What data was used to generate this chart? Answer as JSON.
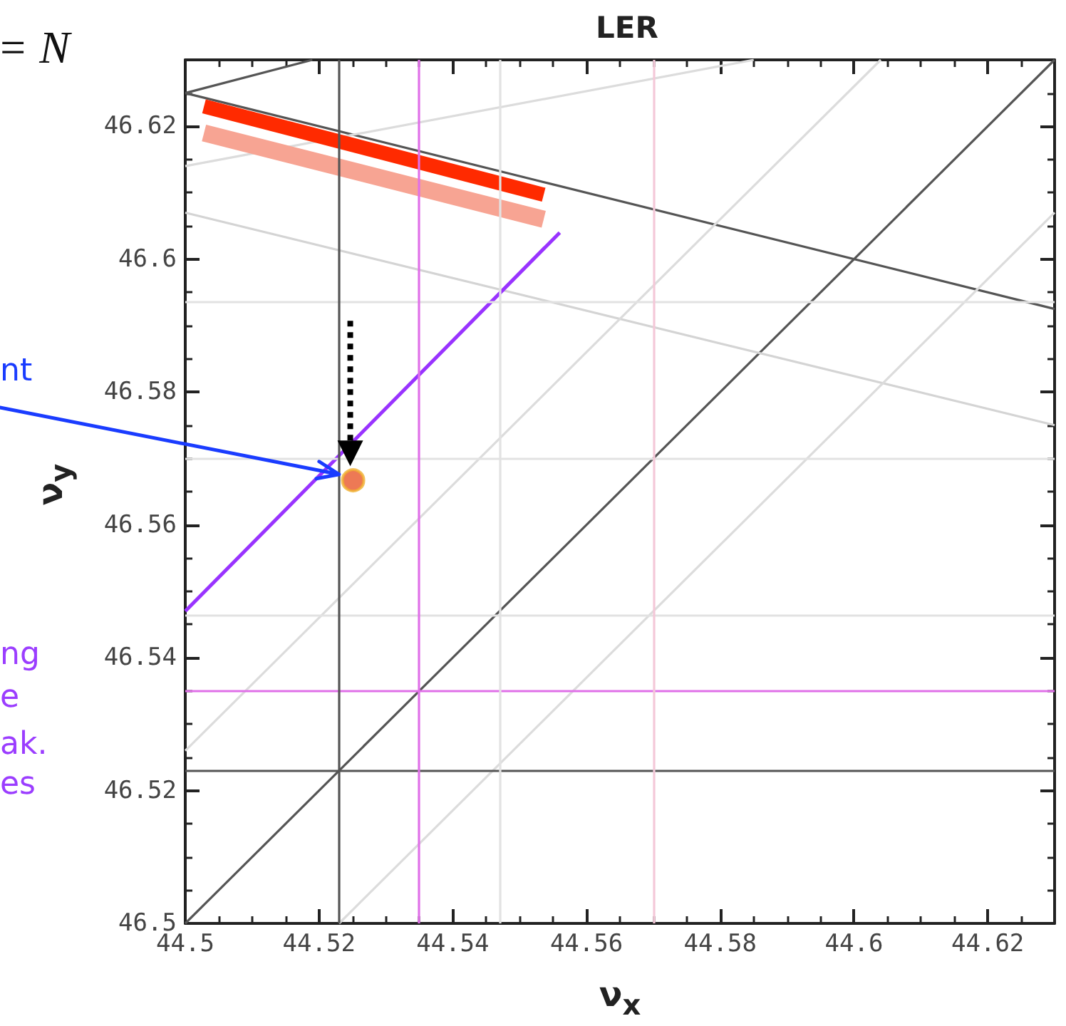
{
  "chart_data": {
    "type": "line",
    "title": "LER",
    "xlabel": "ν$_{x}$",
    "ylabel": "ν$_{y}$",
    "xlim": [
      44.5,
      44.63
    ],
    "ylim": [
      46.5,
      46.63
    ],
    "xticks": [
      44.5,
      44.52,
      44.54,
      44.56,
      44.58,
      44.6,
      44.62
    ],
    "yticks": [
      46.5,
      46.52,
      46.54,
      46.56,
      46.58,
      46.6,
      46.62
    ],
    "grid": false,
    "marker": "none",
    "line_style": "solid",
    "series": [
      {
        "color": "#555555",
        "x": [
          44.5,
          44.63
        ],
        "values": [
          46.5,
          46.63
        ]
      },
      {
        "color": "#555555",
        "x": [
          44.5,
          44.63
        ],
        "values": [
          46.625,
          46.5925
        ]
      },
      {
        "color": "#555555",
        "x": [
          44.5,
          44.519
        ],
        "values": [
          46.625,
          46.63
        ]
      },
      {
        "color": "#d4d4d4",
        "x": [
          44.5,
          44.63
        ],
        "values": [
          46.607,
          46.575
        ]
      },
      {
        "color": "#dcdcdc",
        "x": [
          44.5,
          44.585
        ],
        "values": [
          46.614,
          46.63
        ]
      },
      {
        "color": "#dcdcdc",
        "x": [
          44.5,
          44.604
        ],
        "values": [
          46.526,
          46.63
        ]
      },
      {
        "color": "#dcdcdc",
        "x": [
          44.523,
          44.63
        ],
        "values": [
          46.5,
          46.607
        ]
      },
      {
        "color": "#f7a493",
        "x": [
          44.5028,
          44.5536
        ],
        "values": [
          46.619,
          46.606
        ]
      },
      {
        "color": "#ff2a00",
        "x": [
          44.5028,
          44.5536
        ],
        "values": [
          46.623,
          46.6097
        ]
      },
      {
        "color": "#9933ff",
        "x": [
          44.5,
          44.556
        ],
        "values": [
          46.547,
          46.604
        ]
      },
      {
        "type": "scatter",
        "marker": "circle",
        "color": "#e8582a",
        "x": [
          44.5251
        ],
        "values": [
          46.5667
        ]
      }
    ],
    "ref_lines": [
      {
        "axis": "y",
        "value": 46.523,
        "color": "#555555"
      },
      {
        "axis": "y",
        "value": 46.535,
        "color": "#e070e8"
      },
      {
        "axis": "y",
        "value": 46.5464,
        "color": "#e2e2e2"
      },
      {
        "axis": "y",
        "value": 46.57,
        "color": "#e2e2e2"
      },
      {
        "axis": "y",
        "value": 46.5935,
        "color": "#e2e2e2"
      },
      {
        "axis": "x",
        "value": 44.523,
        "color": "#555555"
      },
      {
        "axis": "x",
        "value": 44.535,
        "color": "#e070e8"
      },
      {
        "axis": "x",
        "value": 44.547,
        "color": "#e2e2e2"
      },
      {
        "axis": "x",
        "value": 44.57,
        "color": "#f4c8d8"
      }
    ],
    "annotations": [
      "= N",
      {
        "text": "nt",
        "x": 44.523,
        "y": 46.5676
      },
      "ng",
      "e",
      "ak.",
      "es"
    ]
  }
}
